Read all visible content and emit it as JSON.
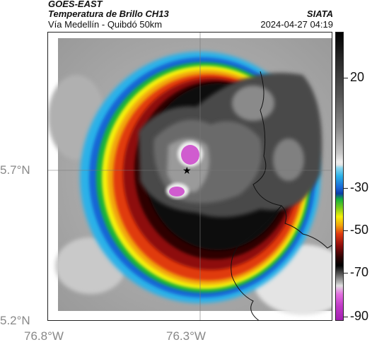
{
  "header": {
    "source": "GOES-EAST",
    "product": "Temperatura de Brillo CH13",
    "area": "Vía Medellín - Quibdó 50km",
    "organization": "SIATA",
    "datetime": "2024-04-27 04:19"
  },
  "map": {
    "y_ticks": [
      "5.7°N",
      "5.2°N"
    ],
    "x_ticks": [
      "76.8°W",
      "76.3°W"
    ],
    "marker": "star-location",
    "gridlines": true
  },
  "colorbar": {
    "ticks": [
      "20",
      "-30",
      "-50",
      "-70",
      "-90"
    ],
    "colors": [
      "#000000",
      "#888888",
      "#eeeeee",
      "#2ab1e8",
      "#0c3ea8",
      "#16b23a",
      "#f5f00a",
      "#e03a10",
      "#2e0303",
      "#b9b9b9",
      "#c23bc8"
    ]
  }
}
